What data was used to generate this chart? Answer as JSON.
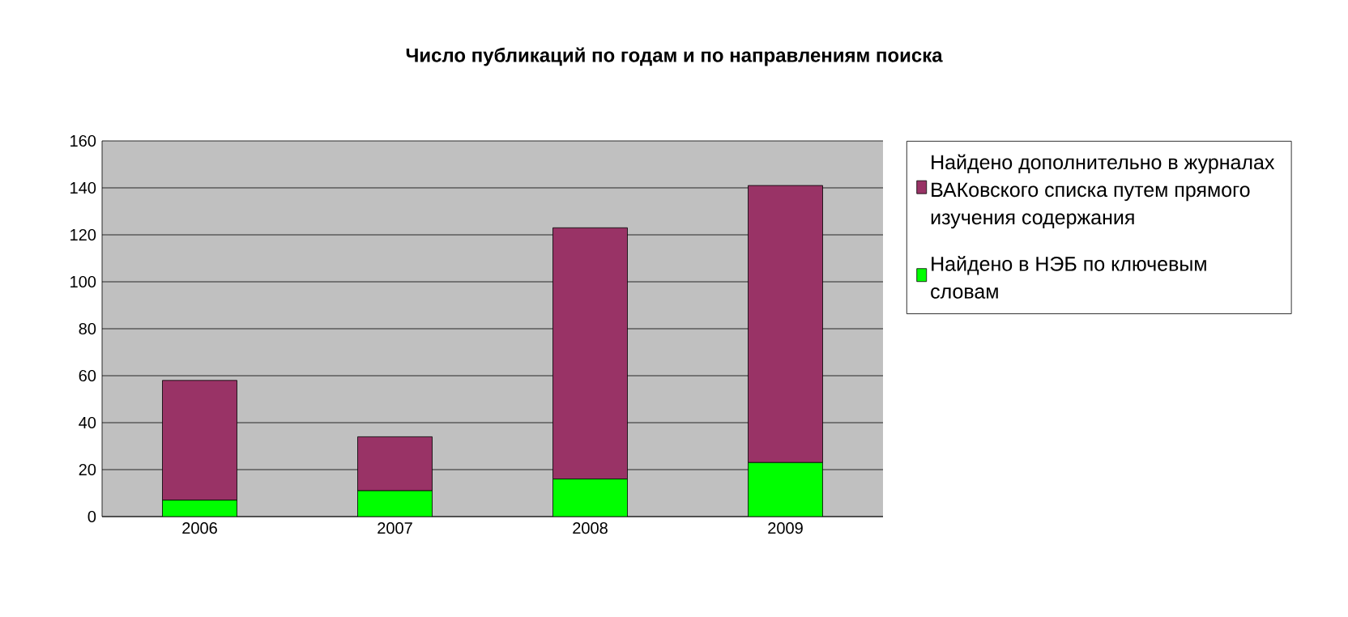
{
  "chart_data": {
    "type": "bar",
    "stacked": true,
    "title": "Число публикаций по годам и по направлениям поиска",
    "categories": [
      "2006",
      "2007",
      "2008",
      "2009"
    ],
    "series": [
      {
        "name": "Найдено в НЭБ по ключевым словам",
        "color": "#00ff00",
        "values": [
          7,
          11,
          16,
          23
        ]
      },
      {
        "name": "Найдено дополнительно в журналах ВАКовского списка путем прямого изучения содержания",
        "color": "#993366",
        "values": [
          51,
          23,
          107,
          118
        ]
      }
    ],
    "ylim": [
      0,
      160
    ],
    "yticks": [
      0,
      20,
      40,
      60,
      80,
      100,
      120,
      140,
      160
    ],
    "grid": "y",
    "legend": "right"
  }
}
